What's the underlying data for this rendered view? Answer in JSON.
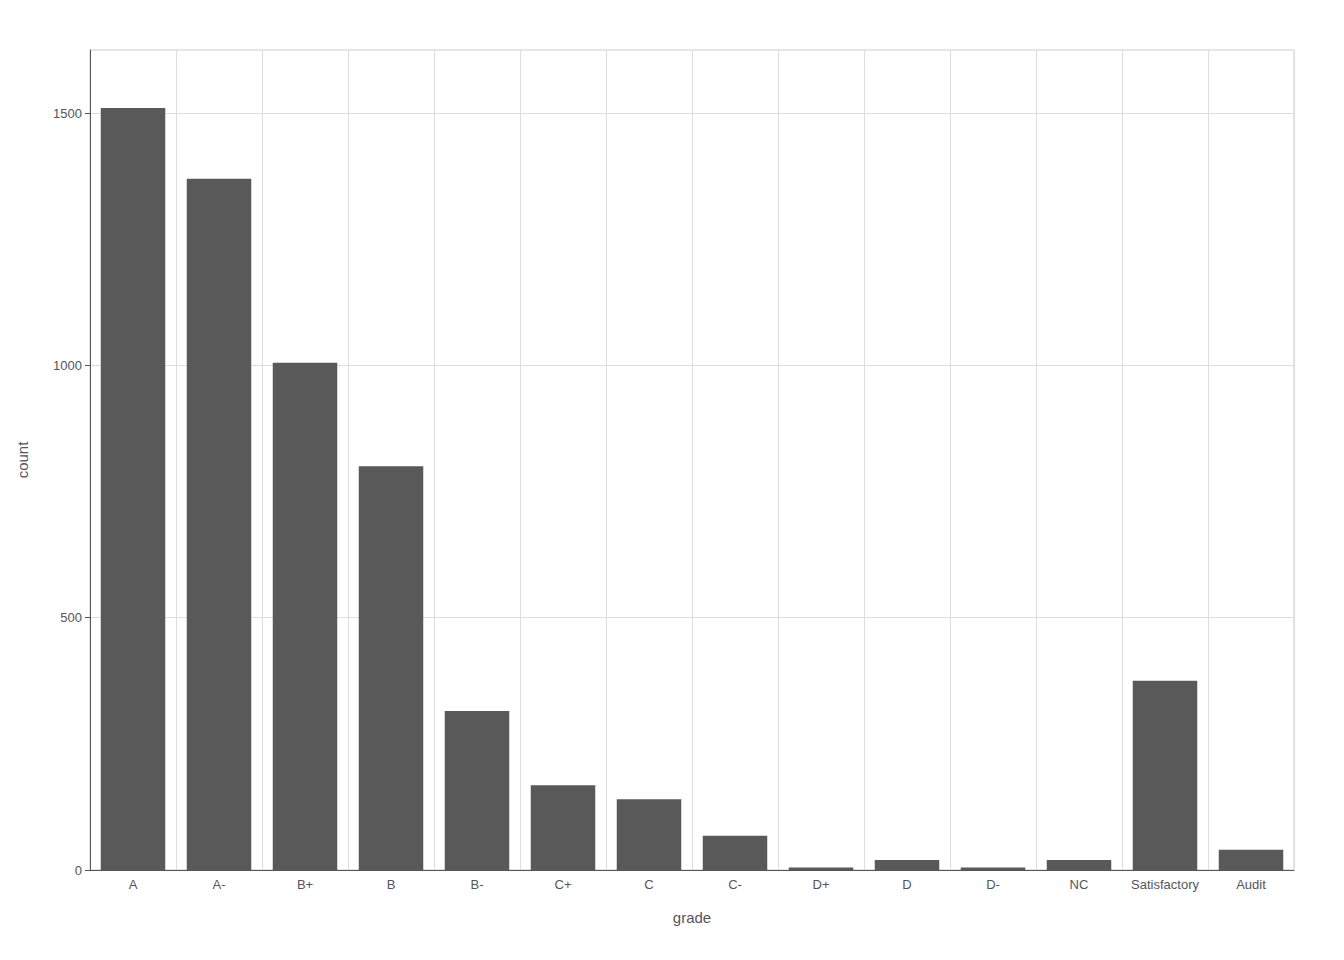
{
  "chart_data": {
    "type": "bar",
    "categories": [
      "A",
      "A-",
      "B+",
      "B",
      "B-",
      "C+",
      "C",
      "C-",
      "D+",
      "D",
      "D-",
      "NC",
      "Satisfactory",
      "Audit"
    ],
    "values": [
      1510,
      1370,
      1005,
      800,
      315,
      168,
      140,
      68,
      5,
      20,
      5,
      20,
      375,
      40
    ],
    "color": "#595959",
    "xlabel": "grade",
    "ylabel": "count",
    "ylim": [
      0,
      1625
    ],
    "yticks": [
      0,
      500,
      1000,
      1500
    ],
    "grid": true
  }
}
